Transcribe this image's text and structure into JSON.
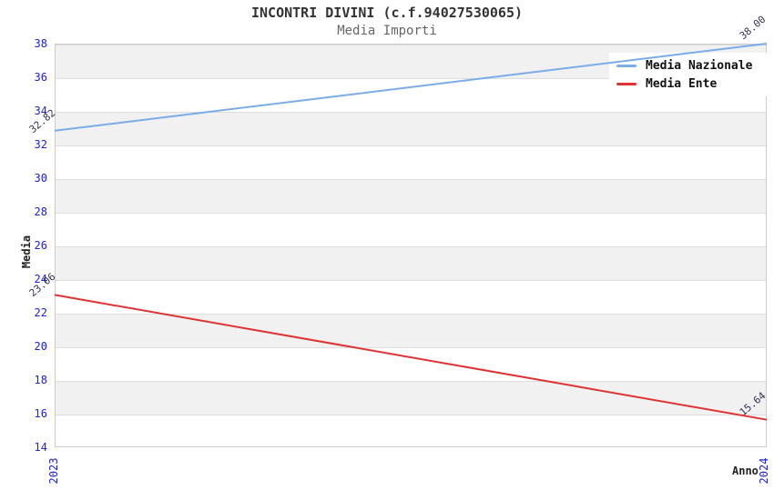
{
  "title": "INCONTRI DIVINI (c.f.94027530065)",
  "subtitle": "Media Importi",
  "chart_data": {
    "type": "line",
    "title": "INCONTRI DIVINI (c.f.94027530065)",
    "subtitle": "Media Importi",
    "xlabel": "Anno",
    "ylabel": "Media",
    "x_categories": [
      "2023",
      "2024"
    ],
    "ylim": [
      14,
      38
    ],
    "yticks": [
      14,
      16,
      18,
      20,
      22,
      24,
      26,
      28,
      30,
      32,
      34,
      36,
      38
    ],
    "grid": "alternating horizontal gray/white bands every 2 units, light gridlines at band edges",
    "legend_position": "top-right",
    "series": [
      {
        "name": "Media Nazionale",
        "color": "#7aace8",
        "values": [
          32.82,
          38.0
        ],
        "point_labels": [
          "32.82",
          "38.00"
        ]
      },
      {
        "name": "Media Ente",
        "color": "#e03232",
        "values": [
          23.06,
          15.64
        ],
        "point_labels": [
          "23.06",
          "15.64"
        ]
      }
    ],
    "colors": {
      "axis_tick_labels": "#2222cc",
      "point_labels": "#333355",
      "band_gray": "#f1f1f1",
      "plot_border": "#cccccc",
      "title": "#333333",
      "subtitle": "#666666",
      "axis_titles": "#222222",
      "legend_text": "#111111"
    }
  }
}
